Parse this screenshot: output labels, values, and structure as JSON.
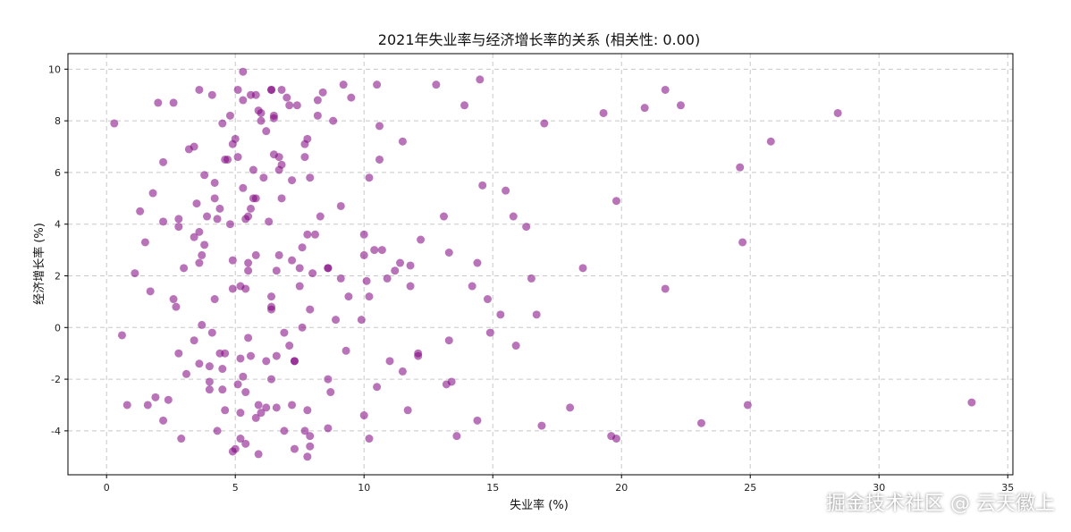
{
  "chart_data": {
    "type": "scatter",
    "title": "2021年失业率与经济增长率的关系 (相关性: 0.00)",
    "xlabel": "失业率 (%)",
    "ylabel": "经济增长率 (%)",
    "xlim": [
      -1.5,
      35.2
    ],
    "ylim": [
      -5.7,
      10.6
    ],
    "xticks": [
      0,
      5,
      10,
      15,
      20,
      25,
      30,
      35
    ],
    "yticks": [
      -4,
      -2,
      0,
      2,
      4,
      6,
      8,
      10
    ],
    "grid": true,
    "point_color": "#800080",
    "points": [
      [
        0.3,
        7.9
      ],
      [
        0.6,
        -0.3
      ],
      [
        0.8,
        -3.0
      ],
      [
        1.1,
        2.1
      ],
      [
        1.3,
        4.5
      ],
      [
        1.5,
        3.3
      ],
      [
        1.6,
        -3.0
      ],
      [
        1.7,
        1.4
      ],
      [
        1.8,
        5.2
      ],
      [
        1.9,
        -2.7
      ],
      [
        2.0,
        8.7
      ],
      [
        2.2,
        6.4
      ],
      [
        2.2,
        4.1
      ],
      [
        2.2,
        -3.6
      ],
      [
        2.4,
        -2.8
      ],
      [
        2.6,
        1.1
      ],
      [
        2.6,
        8.7
      ],
      [
        2.7,
        0.8
      ],
      [
        2.8,
        3.9
      ],
      [
        2.8,
        4.2
      ],
      [
        2.8,
        -1.0
      ],
      [
        2.9,
        -4.3
      ],
      [
        3.0,
        2.3
      ],
      [
        3.1,
        -1.8
      ],
      [
        3.2,
        6.9
      ],
      [
        3.4,
        7.0
      ],
      [
        3.4,
        3.5
      ],
      [
        3.4,
        -0.5
      ],
      [
        3.5,
        4.8
      ],
      [
        3.6,
        2.5
      ],
      [
        3.6,
        -1.4
      ],
      [
        3.6,
        3.7
      ],
      [
        3.6,
        9.2
      ],
      [
        3.7,
        0.1
      ],
      [
        3.7,
        2.8
      ],
      [
        3.8,
        3.2
      ],
      [
        3.8,
        5.9
      ],
      [
        3.9,
        4.3
      ],
      [
        4.0,
        -2.1
      ],
      [
        4.0,
        -2.4
      ],
      [
        4.0,
        -1.5
      ],
      [
        4.1,
        9.0
      ],
      [
        4.1,
        -0.2
      ],
      [
        4.2,
        1.1
      ],
      [
        4.2,
        5.6
      ],
      [
        4.2,
        5.0
      ],
      [
        4.3,
        -4.0
      ],
      [
        4.3,
        4.2
      ],
      [
        4.4,
        4.6
      ],
      [
        4.4,
        -1.0
      ],
      [
        4.5,
        -2.4
      ],
      [
        4.5,
        -1.6
      ],
      [
        4.5,
        7.9
      ],
      [
        4.6,
        6.5
      ],
      [
        4.6,
        -3.2
      ],
      [
        4.6,
        -1.0
      ],
      [
        4.7,
        6.5
      ],
      [
        4.8,
        8.2
      ],
      [
        4.8,
        4.0
      ],
      [
        4.9,
        7.1
      ],
      [
        4.9,
        1.5
      ],
      [
        4.9,
        2.6
      ],
      [
        4.9,
        -4.8
      ],
      [
        5.0,
        -4.7
      ],
      [
        5.0,
        7.3
      ],
      [
        5.1,
        9.2
      ],
      [
        5.1,
        -2.2
      ],
      [
        5.1,
        6.6
      ],
      [
        5.2,
        -1.2
      ],
      [
        5.2,
        1.6
      ],
      [
        5.2,
        -4.3
      ],
      [
        5.2,
        -3.3
      ],
      [
        5.3,
        8.8
      ],
      [
        5.3,
        -1.9
      ],
      [
        5.3,
        5.4
      ],
      [
        5.3,
        9.9
      ],
      [
        5.4,
        -2.5
      ],
      [
        5.4,
        1.5
      ],
      [
        5.4,
        -4.5
      ],
      [
        5.4,
        4.2
      ],
      [
        5.5,
        4.3
      ],
      [
        5.5,
        2.2
      ],
      [
        5.5,
        2.5
      ],
      [
        5.5,
        -0.4
      ],
      [
        5.6,
        4.6
      ],
      [
        5.6,
        -1.1
      ],
      [
        5.6,
        9.0
      ],
      [
        5.7,
        6.1
      ],
      [
        5.7,
        5.0
      ],
      [
        5.8,
        5.0
      ],
      [
        5.8,
        2.8
      ],
      [
        5.8,
        9.0
      ],
      [
        5.8,
        -3.5
      ],
      [
        5.9,
        8.4
      ],
      [
        5.9,
        -3.0
      ],
      [
        5.9,
        -4.9
      ],
      [
        6.0,
        8.3
      ],
      [
        6.0,
        -3.3
      ],
      [
        6.0,
        8.0
      ],
      [
        6.1,
        5.8
      ],
      [
        6.2,
        -1.3
      ],
      [
        6.2,
        7.6
      ],
      [
        6.2,
        -3.1
      ],
      [
        6.3,
        4.1
      ],
      [
        6.4,
        0.7
      ],
      [
        6.4,
        0.8
      ],
      [
        6.4,
        9.2
      ],
      [
        6.4,
        9.2
      ],
      [
        6.4,
        -2.0
      ],
      [
        6.4,
        1.2
      ],
      [
        6.5,
        6.7
      ],
      [
        6.5,
        8.2
      ],
      [
        6.5,
        8.1
      ],
      [
        6.6,
        -1.1
      ],
      [
        6.6,
        2.2
      ],
      [
        6.6,
        -3.1
      ],
      [
        6.7,
        6.1
      ],
      [
        6.7,
        2.8
      ],
      [
        6.7,
        6.6
      ],
      [
        6.8,
        9.2
      ],
      [
        6.8,
        6.3
      ],
      [
        6.8,
        5.0
      ],
      [
        6.9,
        -4.0
      ],
      [
        6.9,
        -0.2
      ],
      [
        7.0,
        8.9
      ],
      [
        7.1,
        -0.7
      ],
      [
        7.1,
        8.6
      ],
      [
        7.2,
        2.6
      ],
      [
        7.2,
        5.7
      ],
      [
        7.2,
        -3.0
      ],
      [
        7.3,
        -4.7
      ],
      [
        7.3,
        -1.3
      ],
      [
        7.3,
        -1.3
      ],
      [
        7.4,
        8.6
      ],
      [
        7.5,
        2.3
      ],
      [
        7.5,
        1.6
      ],
      [
        7.6,
        3.1
      ],
      [
        7.6,
        0.0
      ],
      [
        7.7,
        -4.0
      ],
      [
        7.7,
        7.1
      ],
      [
        7.7,
        6.6
      ],
      [
        7.8,
        7.3
      ],
      [
        7.8,
        3.6
      ],
      [
        7.8,
        -3.2
      ],
      [
        7.8,
        -5.0
      ],
      [
        7.9,
        5.8
      ],
      [
        7.9,
        -4.2
      ],
      [
        7.9,
        -4.6
      ],
      [
        7.9,
        0.7
      ],
      [
        8.0,
        2.1
      ],
      [
        8.1,
        3.6
      ],
      [
        8.2,
        8.8
      ],
      [
        8.2,
        8.2
      ],
      [
        8.3,
        4.3
      ],
      [
        8.4,
        9.1
      ],
      [
        8.6,
        -2.0
      ],
      [
        8.6,
        -3.9
      ],
      [
        8.6,
        2.3
      ],
      [
        8.6,
        2.3
      ],
      [
        8.7,
        -2.5
      ],
      [
        8.8,
        8.0
      ],
      [
        8.9,
        0.3
      ],
      [
        9.1,
        1.9
      ],
      [
        9.1,
        4.7
      ],
      [
        9.2,
        9.4
      ],
      [
        9.3,
        -0.9
      ],
      [
        9.4,
        1.2
      ],
      [
        9.5,
        8.9
      ],
      [
        9.9,
        0.3
      ],
      [
        10.0,
        3.6
      ],
      [
        10.0,
        2.8
      ],
      [
        10.0,
        -3.4
      ],
      [
        10.1,
        1.8
      ],
      [
        10.2,
        -4.3
      ],
      [
        10.2,
        5.8
      ],
      [
        10.2,
        1.2
      ],
      [
        10.4,
        3.0
      ],
      [
        10.5,
        9.4
      ],
      [
        10.5,
        -2.3
      ],
      [
        10.6,
        6.5
      ],
      [
        10.6,
        7.8
      ],
      [
        10.7,
        3.0
      ],
      [
        10.9,
        1.9
      ],
      [
        11.0,
        -1.3
      ],
      [
        11.2,
        2.2
      ],
      [
        11.4,
        2.5
      ],
      [
        11.5,
        -1.7
      ],
      [
        11.5,
        7.2
      ],
      [
        11.7,
        -3.2
      ],
      [
        11.8,
        1.6
      ],
      [
        11.8,
        2.4
      ],
      [
        12.1,
        -1.1
      ],
      [
        12.1,
        -1.0
      ],
      [
        12.2,
        3.4
      ],
      [
        12.8,
        9.4
      ],
      [
        13.1,
        4.3
      ],
      [
        13.2,
        -2.2
      ],
      [
        13.3,
        -0.5
      ],
      [
        13.3,
        2.9
      ],
      [
        13.4,
        -2.1
      ],
      [
        13.6,
        -4.2
      ],
      [
        13.9,
        8.6
      ],
      [
        14.2,
        1.6
      ],
      [
        14.4,
        -3.6
      ],
      [
        14.4,
        2.5
      ],
      [
        14.5,
        9.6
      ],
      [
        14.6,
        5.5
      ],
      [
        14.8,
        1.1
      ],
      [
        14.9,
        -0.2
      ],
      [
        15.3,
        0.5
      ],
      [
        15.5,
        5.3
      ],
      [
        15.8,
        4.3
      ],
      [
        15.9,
        -0.7
      ],
      [
        16.3,
        3.9
      ],
      [
        16.5,
        1.9
      ],
      [
        16.7,
        0.5
      ],
      [
        16.9,
        -3.8
      ],
      [
        17.0,
        7.9
      ],
      [
        18.0,
        -3.1
      ],
      [
        18.5,
        2.3
      ],
      [
        19.3,
        8.3
      ],
      [
        19.6,
        -4.2
      ],
      [
        19.8,
        -4.3
      ],
      [
        19.8,
        4.9
      ],
      [
        20.9,
        8.5
      ],
      [
        21.7,
        1.5
      ],
      [
        21.7,
        9.2
      ],
      [
        22.3,
        8.6
      ],
      [
        23.1,
        -3.7
      ],
      [
        24.6,
        6.2
      ],
      [
        24.7,
        3.3
      ],
      [
        24.9,
        -3.0
      ],
      [
        25.8,
        7.2
      ],
      [
        28.4,
        8.3
      ],
      [
        33.6,
        -2.9
      ]
    ]
  },
  "watermark": "掘金技术社区 @ 云天徽上"
}
